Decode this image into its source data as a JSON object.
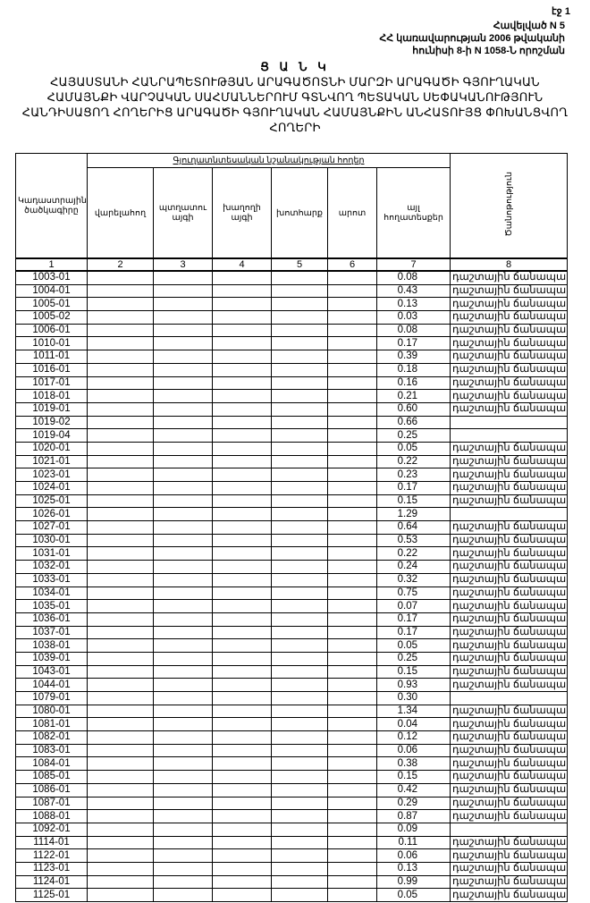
{
  "page": {
    "number_label": "էջ 1"
  },
  "annex": {
    "line1": "Հավելված N 5",
    "line2": "ՀՀ կառավարության 2006 թվականի",
    "line3": "հունիսի 8-ի N 1058-Ն որոշման"
  },
  "title": {
    "list_word": "Ց Ա Ն Կ",
    "line1": "ՀԱՅԱՍՏԱՆԻ ՀԱՆՐԱՊԵՏՈՒԹՅԱՆ ԱՐԱԳԱԾՈՏՆԻ ՄԱՐԶԻ ԱՐԱԳԱԾԻ ԳՅՈՒՂԱԿԱՆ",
    "line2": "ՀԱՄԱՅՆՔԻ ՎԱՐՉԱԿԱՆ ՍԱՀՄԱՆՆԵՐՈՒՄ  ԳՏՆՎՈՂ  ՊԵՏԱԿԱՆ ՍԵՓԱԿԱՆՈՒԹՅՈՒՆ",
    "line3": "ՀԱՆԴԻՍԱՑՈՂ ՀՈՂԵՐԻՑ ԱՐԱԳԱԾԻ ԳՅՈՒՂԱԿԱՆ ՀԱՄԱՅՆՔԻՆ ԱՆՀԱՏՈՒՅՑ ՓՈԽԱՆՑՎՈՂ",
    "line4": "ՀՈՂԵՐԻ"
  },
  "table": {
    "header": {
      "cadastral_code": "Կադաստրային ծածկագիրը",
      "group": "Գյուղատնտեսական նշանակության հողեր",
      "arable": "վարելահող",
      "orchard": "պտղատու այգի",
      "vineyard": "խաղողի այգի",
      "hayfield": "խոտհարք",
      "pasture": "արոտ",
      "other": "այլ հողատեսքեր",
      "note": "Ծանոթություն"
    },
    "column_numbers": [
      "1",
      "2",
      "3",
      "4",
      "5",
      "6",
      "7",
      "8"
    ],
    "rows": [
      {
        "code": "1003-01",
        "other": "0.08",
        "note": "դաշտային ճանապարհ"
      },
      {
        "code": "1004-01",
        "other": "0.43",
        "note": "դաշտային ճանապարհ"
      },
      {
        "code": "1005-01",
        "other": "0.13",
        "note": "դաշտային ճանապարհ"
      },
      {
        "code": "1005-02",
        "other": "0.03",
        "note": "դաշտային ճանապարհ"
      },
      {
        "code": "1006-01",
        "other": "0.08",
        "note": "դաշտային ճանապարհ"
      },
      {
        "code": "1010-01",
        "other": "0.17",
        "note": "դաշտային ճանապարհ"
      },
      {
        "code": "1011-01",
        "other": "0.39",
        "note": "դաշտային ճանապարհ"
      },
      {
        "code": "1016-01",
        "other": "0.18",
        "note": "դաշտային ճանապարհ"
      },
      {
        "code": "1017-01",
        "other": "0.16",
        "note": "դաշտային ճանապարհ"
      },
      {
        "code": "1018-01",
        "other": "0.21",
        "note": "դաշտային ճանապարհ"
      },
      {
        "code": "1019-01",
        "other": "0.60",
        "note": "դաշտային ճանապարհ"
      },
      {
        "code": "1019-02",
        "other": "0.66",
        "note": ""
      },
      {
        "code": "1019-04",
        "other": "0.25",
        "note": ""
      },
      {
        "code": "1020-01",
        "other": "0.05",
        "note": "դաշտային ճանապարհ"
      },
      {
        "code": "1021-01",
        "other": "0.22",
        "note": "դաշտային ճանապարհ"
      },
      {
        "code": "1023-01",
        "other": "0.23",
        "note": "դաշտային ճանապարհ"
      },
      {
        "code": "1024-01",
        "other": "0.17",
        "note": "դաշտային ճանապարհ"
      },
      {
        "code": "1025-01",
        "other": "0.15",
        "note": "դաշտային ճանապարհ"
      },
      {
        "code": "1026-01",
        "other": "1.29",
        "note": ""
      },
      {
        "code": "1027-01",
        "other": "0.64",
        "note": "դաշտային ճանապարհ"
      },
      {
        "code": "1030-01",
        "other": "0.53",
        "note": "դաշտային ճանապարհ"
      },
      {
        "code": "1031-01",
        "other": "0.22",
        "note": "դաշտային ճանապարհ"
      },
      {
        "code": "1032-01",
        "other": "0.24",
        "note": "դաշտային ճանապարհ"
      },
      {
        "code": "1033-01",
        "other": "0.32",
        "note": "դաշտային ճանապարհ"
      },
      {
        "code": "1034-01",
        "other": "0.75",
        "note": "դաշտային ճանապարհ"
      },
      {
        "code": "1035-01",
        "other": "0.07",
        "note": "դաշտային ճանապարհ"
      },
      {
        "code": "1036-01",
        "other": "0.17",
        "note": "դաշտային ճանապարհ"
      },
      {
        "code": "1037-01",
        "other": "0.17",
        "note": "դաշտային ճանապարհ"
      },
      {
        "code": "1038-01",
        "other": "0.05",
        "note": "դաշտային ճանապարհ"
      },
      {
        "code": "1039-01",
        "other": "0.25",
        "note": "դաշտային ճանապարհ"
      },
      {
        "code": "1043-01",
        "other": "0.15",
        "note": "դաշտային ճանապարհ"
      },
      {
        "code": "1044-01",
        "other": "0.93",
        "note": "դաշտային ճանապարհ"
      },
      {
        "code": "1079-01",
        "other": "0.30",
        "note": ""
      },
      {
        "code": "1080-01",
        "other": "1.34",
        "note": "դաշտային ճանապարհ"
      },
      {
        "code": "1081-01",
        "other": "0.04",
        "note": "դաշտային ճանապարհ"
      },
      {
        "code": "1082-01",
        "other": "0.12",
        "note": "դաշտային ճանապարհ"
      },
      {
        "code": "1083-01",
        "other": "0.06",
        "note": "դաշտային ճանապարհ"
      },
      {
        "code": "1084-01",
        "other": "0.38",
        "note": "դաշտային ճանապարհ"
      },
      {
        "code": "1085-01",
        "other": "0.15",
        "note": "դաշտային ճանապարհ"
      },
      {
        "code": "1086-01",
        "other": "0.42",
        "note": "դաշտային ճանապարհ"
      },
      {
        "code": "1087-01",
        "other": "0.29",
        "note": "դաշտային ճանապարհ"
      },
      {
        "code": "1088-01",
        "other": "0.87",
        "note": "դաշտային ճանապարհ"
      },
      {
        "code": "1092-01",
        "other": "0.09",
        "note": ""
      },
      {
        "code": "1114-01",
        "other": "0.11",
        "note": "դաշտային ճանապարհ"
      },
      {
        "code": "1122-01",
        "other": "0.06",
        "note": "դաշտային ճանապարհ"
      },
      {
        "code": "1123-01",
        "other": "0.13",
        "note": "դաշտային ճանապարհ"
      },
      {
        "code": "1124-01",
        "other": "0.99",
        "note": "դաշտային ճանապարհ"
      },
      {
        "code": "1125-01",
        "other": "0.05",
        "note": "դաշտային ճանապարհ"
      }
    ]
  }
}
